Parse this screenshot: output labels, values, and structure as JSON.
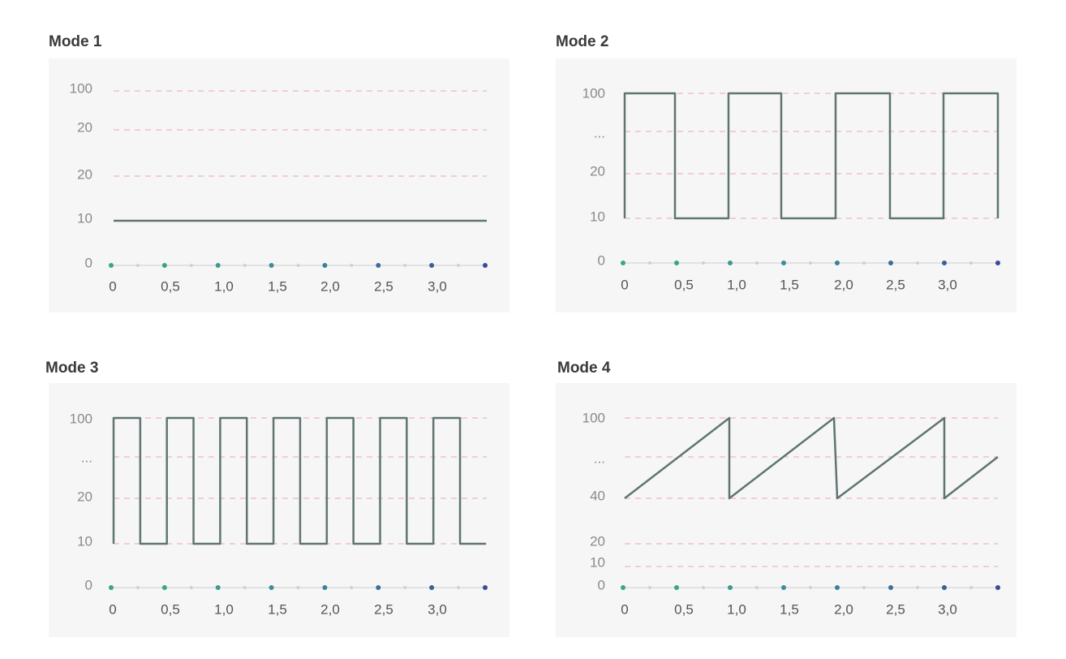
{
  "panels": [
    {
      "title": "Mode 1",
      "y_labels": [
        "100",
        "20",
        "20",
        "10",
        "0"
      ],
      "x_labels": [
        "0",
        "0,5",
        "1,0",
        "1,5",
        "2,0",
        "2,5",
        "3,0"
      ]
    },
    {
      "title": "Mode 2",
      "y_labels": [
        "100",
        "...",
        "20",
        "10",
        "0"
      ],
      "x_labels": [
        "0",
        "0,5",
        "1,0",
        "1,5",
        "2,0",
        "2,5",
        "3,0"
      ]
    },
    {
      "title": "Mode 3",
      "y_labels": [
        "100",
        "...",
        "20",
        "10",
        "0"
      ],
      "x_labels": [
        "0",
        "0,5",
        "1,0",
        "1,5",
        "2,0",
        "2,5",
        "3,0"
      ]
    },
    {
      "title": "Mode 4",
      "y_labels": [
        "100",
        "...",
        "40",
        "20",
        "10",
        "0"
      ],
      "x_labels": [
        "0",
        "0,5",
        "1,0",
        "1,5",
        "2,0",
        "2,5",
        "3,0"
      ]
    }
  ]
}
